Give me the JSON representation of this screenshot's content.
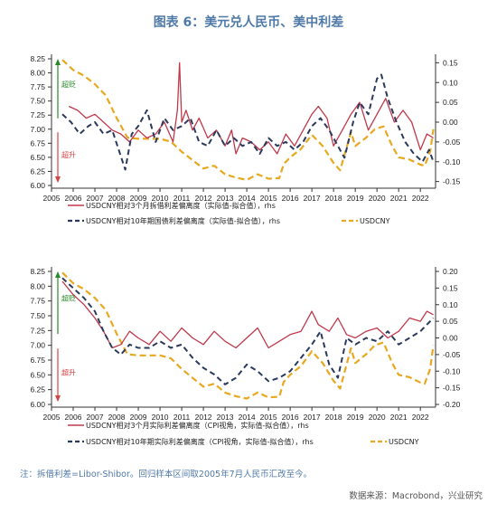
{
  "title": "图表 6：美元兑人民币、美中利差",
  "note": "注：拆借利差=Libor-Shibor。回归样本区间取2005年7月人民币汇改至今。",
  "source": "数据来源：Macrobond，兴业研究",
  "colors": {
    "red": "#c0394b",
    "navy": "#2b3a5c",
    "gold": "#e8a820",
    "green": "#2a8a2a",
    "arrowRed": "#d94040"
  },
  "chart_data": [
    {
      "type": "line",
      "x_ticks": [
        "2005",
        "2006",
        "2007",
        "2008",
        "2009",
        "2010",
        "2011",
        "2012",
        "2013",
        "2014",
        "2015",
        "2016",
        "2017",
        "2018",
        "2019",
        "2020",
        "2021",
        "2022"
      ],
      "xlim": [
        2005,
        2022.7
      ],
      "y_left": {
        "ticks": [
          "8.25",
          "8.00",
          "7.75",
          "7.50",
          "7.25",
          "7.00",
          "6.75",
          "6.50",
          "6.25",
          "6.00"
        ],
        "ylim": [
          6.0,
          8.25
        ]
      },
      "y_right": {
        "ticks": [
          "0.15",
          "0.10",
          "0.05",
          "0.00",
          "-0.05",
          "-0.10",
          "-0.15"
        ],
        "ylim": [
          -0.16,
          0.16
        ]
      },
      "annotations": {
        "up": "超贬",
        "down": "超升"
      },
      "legend": [
        {
          "label": "USDCNY相对3个月拆借利差偏离度（实际值-拟合值），rhs",
          "style": "solid",
          "color": "#c0394b"
        },
        {
          "label": "USDCNY相对10年期国债利差偏离度（实际值-拟合值），rhs",
          "style": "dashed",
          "color": "#2b3a5c"
        },
        {
          "label": "USDCNY",
          "style": "dashed",
          "color": "#e8a820"
        }
      ],
      "series": [
        {
          "key": "usdcny",
          "axis": "left",
          "color": "#e8a820",
          "dash": "7,4",
          "width": 2.2,
          "x": [
            2005.5,
            2006,
            2006.5,
            2007,
            2007.5,
            2008,
            2008.5,
            2009,
            2009.5,
            2010,
            2010.5,
            2011,
            2011.5,
            2012,
            2012.5,
            2013,
            2013.5,
            2014,
            2014.5,
            2015,
            2015.5,
            2015.7,
            2016,
            2016.5,
            2017,
            2017.5,
            2018,
            2018.3,
            2018.8,
            2019,
            2019.5,
            2019.9,
            2020.3,
            2020.7,
            2021,
            2021.5,
            2022,
            2022.2,
            2022.45,
            2022.6
          ],
          "y": [
            8.23,
            8.05,
            7.95,
            7.8,
            7.6,
            7.2,
            6.85,
            6.83,
            6.83,
            6.83,
            6.78,
            6.6,
            6.45,
            6.3,
            6.35,
            6.2,
            6.14,
            6.1,
            6.2,
            6.12,
            6.13,
            6.38,
            6.5,
            6.65,
            6.9,
            6.7,
            6.4,
            6.27,
            6.95,
            6.7,
            6.85,
            7.0,
            7.05,
            6.7,
            6.5,
            6.46,
            6.37,
            6.35,
            6.6,
            7.0
          ]
        },
        {
          "key": "libor",
          "axis": "right",
          "color": "#c0394b",
          "dash": "",
          "width": 1.3,
          "x": [
            2005.8,
            2006.2,
            2006.6,
            2007,
            2007.4,
            2007.8,
            2008.2,
            2008.6,
            2009,
            2009.4,
            2009.8,
            2010.2,
            2010.6,
            2010.8,
            2010.9,
            2011.0,
            2011.2,
            2011.5,
            2011.8,
            2012.2,
            2012.6,
            2013,
            2013.3,
            2013.5,
            2013.8,
            2014.2,
            2014.6,
            2015,
            2015.4,
            2015.8,
            2016.2,
            2016.6,
            2017,
            2017.3,
            2017.7,
            2018,
            2018.4,
            2018.8,
            2019.2,
            2019.6,
            2020,
            2020.4,
            2020.8,
            2021.2,
            2021.6,
            2022,
            2022.3,
            2022.6
          ],
          "y": [
            0.04,
            0.03,
            0.01,
            0.02,
            0.0,
            -0.02,
            -0.03,
            -0.05,
            -0.02,
            -0.04,
            -0.03,
            0.0,
            -0.05,
            0.03,
            0.15,
            0.0,
            0.03,
            -0.02,
            0.01,
            -0.04,
            -0.02,
            -0.06,
            -0.02,
            -0.08,
            -0.04,
            -0.05,
            -0.07,
            -0.05,
            -0.08,
            -0.03,
            -0.06,
            -0.02,
            0.02,
            0.04,
            0.01,
            -0.06,
            -0.02,
            0.02,
            0.05,
            -0.02,
            0.02,
            0.06,
            0.0,
            0.03,
            0.0,
            -0.07,
            -0.03,
            -0.04
          ]
        },
        {
          "key": "bond",
          "axis": "right",
          "color": "#2b3a5c",
          "dash": "6,4",
          "width": 2.0,
          "x": [
            2005.5,
            2005.9,
            2006.3,
            2006.7,
            2007,
            2007.4,
            2007.8,
            2008.1,
            2008.4,
            2008.7,
            2009,
            2009.4,
            2009.8,
            2010.2,
            2010.6,
            2011,
            2011.4,
            2011.8,
            2012.2,
            2012.6,
            2013,
            2013.4,
            2013.8,
            2014.2,
            2014.6,
            2015,
            2015.4,
            2015.8,
            2016.2,
            2016.6,
            2017,
            2017.4,
            2017.8,
            2018.1,
            2018.5,
            2018.9,
            2019.2,
            2019.6,
            2020,
            2020.2,
            2020.5,
            2020.9,
            2021.3,
            2021.7,
            2022.1,
            2022.4,
            2022.6
          ],
          "y": [
            0.02,
            0.0,
            -0.03,
            -0.01,
            0.0,
            -0.03,
            -0.02,
            -0.07,
            -0.12,
            -0.03,
            -0.01,
            0.03,
            -0.05,
            0.01,
            -0.02,
            -0.01,
            0.01,
            -0.05,
            -0.06,
            -0.02,
            -0.06,
            -0.04,
            -0.06,
            -0.05,
            -0.08,
            -0.04,
            -0.06,
            -0.05,
            -0.07,
            -0.05,
            -0.01,
            0.01,
            -0.02,
            -0.05,
            -0.09,
            0.0,
            0.05,
            0.02,
            0.11,
            0.12,
            0.06,
            0.0,
            -0.05,
            -0.08,
            -0.1,
            -0.07,
            -0.1
          ]
        }
      ]
    },
    {
      "type": "line",
      "x_ticks": [
        "2005",
        "2006",
        "2007",
        "2008",
        "2009",
        "2010",
        "2011",
        "2012",
        "2013",
        "2014",
        "2015",
        "2016",
        "2017",
        "2018",
        "2019",
        "2020",
        "2021",
        "2022"
      ],
      "xlim": [
        2005,
        2022.7
      ],
      "y_left": {
        "ticks": [
          "8.25",
          "8.00",
          "7.75",
          "7.50",
          "7.25",
          "7.00",
          "6.75",
          "6.50",
          "6.25",
          "6.00"
        ],
        "ylim": [
          6.0,
          8.25
        ]
      },
      "y_right": {
        "ticks": [
          "0.20",
          "0.15",
          "0.10",
          "0.05",
          "0.00",
          "-0.05",
          "-0.10",
          "-0.15",
          "-0.20"
        ],
        "ylim": [
          -0.2,
          0.2
        ]
      },
      "annotations": {
        "up": "超贬",
        "down": "超升"
      },
      "legend": [
        {
          "label": "USDCNY相对3个月实际利差偏离度（CPI视角，实际值-拟合值），rhs",
          "style": "solid",
          "color": "#c0394b"
        },
        {
          "label": "USDCNY相对10年期实际利差偏离度（CPI视角，实际值-拟合值），rhs",
          "style": "dashed",
          "color": "#2b3a5c"
        },
        {
          "label": "USDCNY",
          "style": "dashed",
          "color": "#e8a820"
        }
      ],
      "series": [
        {
          "key": "usdcny",
          "axis": "left",
          "color": "#e8a820",
          "dash": "7,4",
          "width": 2.2,
          "x": [
            2005.5,
            2006,
            2006.5,
            2007,
            2007.5,
            2008,
            2008.5,
            2009,
            2009.5,
            2010,
            2010.5,
            2011,
            2011.5,
            2012,
            2012.5,
            2013,
            2013.5,
            2014,
            2014.5,
            2015,
            2015.5,
            2015.7,
            2016,
            2016.5,
            2017,
            2017.5,
            2018,
            2018.3,
            2018.8,
            2019,
            2019.5,
            2019.9,
            2020.3,
            2020.7,
            2021,
            2021.5,
            2022,
            2022.2,
            2022.45,
            2022.6
          ],
          "y": [
            8.23,
            8.05,
            7.95,
            7.8,
            7.6,
            7.2,
            6.85,
            6.83,
            6.83,
            6.83,
            6.78,
            6.6,
            6.45,
            6.3,
            6.35,
            6.2,
            6.14,
            6.1,
            6.2,
            6.12,
            6.13,
            6.38,
            6.5,
            6.65,
            6.9,
            6.7,
            6.4,
            6.27,
            6.95,
            6.7,
            6.85,
            7.0,
            7.05,
            6.7,
            6.5,
            6.46,
            6.37,
            6.35,
            6.6,
            7.0
          ]
        },
        {
          "key": "real3m",
          "axis": "right",
          "color": "#c0394b",
          "dash": "",
          "width": 1.3,
          "x": [
            2005.5,
            2006,
            2006.5,
            2007,
            2007.4,
            2007.8,
            2008.2,
            2008.6,
            2009,
            2009.5,
            2010,
            2010.5,
            2011,
            2011.5,
            2012,
            2012.5,
            2013,
            2013.5,
            2014,
            2014.5,
            2015,
            2015.5,
            2016,
            2016.5,
            2017,
            2017.3,
            2017.8,
            2018.2,
            2018.6,
            2019,
            2019.5,
            2020,
            2020.5,
            2021,
            2021.5,
            2022,
            2022.3,
            2022.6
          ],
          "y": [
            0.17,
            0.13,
            0.1,
            0.06,
            0.02,
            -0.03,
            -0.02,
            0.02,
            0.0,
            -0.02,
            0.02,
            -0.01,
            0.03,
            0.0,
            -0.02,
            0.02,
            -0.01,
            -0.03,
            0.0,
            0.03,
            -0.03,
            -0.01,
            0.01,
            0.02,
            0.08,
            0.04,
            0.02,
            0.06,
            0.01,
            0.0,
            0.02,
            0.03,
            0.0,
            0.02,
            0.06,
            0.05,
            0.08,
            0.07
          ]
        },
        {
          "key": "real10y",
          "axis": "right",
          "color": "#2b3a5c",
          "dash": "6,4",
          "width": 2.0,
          "x": [
            2005.5,
            2006,
            2006.5,
            2007,
            2007.4,
            2007.8,
            2008.2,
            2008.6,
            2009,
            2009.5,
            2010,
            2010.5,
            2011,
            2011.5,
            2012,
            2012.5,
            2013,
            2013.5,
            2014,
            2014.5,
            2015,
            2015.5,
            2016,
            2016.5,
            2017,
            2017.4,
            2017.8,
            2018.2,
            2018.6,
            2019,
            2019.5,
            2020,
            2020.5,
            2021,
            2021.5,
            2022,
            2022.3,
            2022.6
          ],
          "y": [
            0.18,
            0.15,
            0.12,
            0.08,
            0.02,
            -0.03,
            -0.05,
            -0.02,
            -0.03,
            -0.03,
            -0.01,
            -0.03,
            -0.02,
            -0.06,
            -0.09,
            -0.11,
            -0.14,
            -0.12,
            -0.08,
            -0.1,
            -0.13,
            -0.12,
            -0.1,
            -0.06,
            -0.02,
            0.02,
            -0.08,
            -0.12,
            0.0,
            -0.02,
            0.0,
            -0.01,
            0.02,
            -0.02,
            0.0,
            0.02,
            0.04,
            0.06
          ]
        }
      ]
    }
  ]
}
